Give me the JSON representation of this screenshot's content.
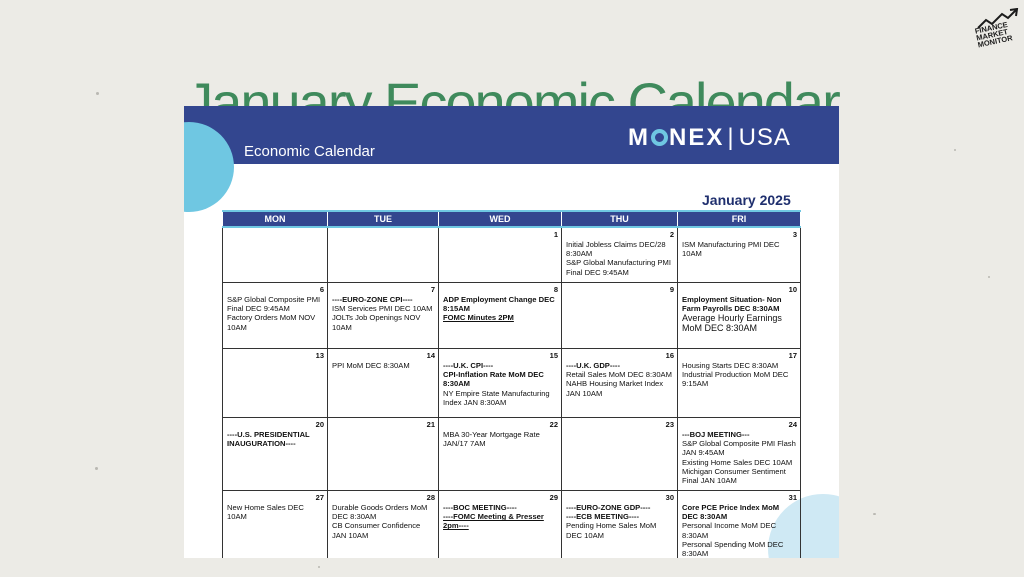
{
  "page": {
    "title": "January Economic Calendar"
  },
  "logo": {
    "line1": "FINANCE",
    "line2": "MARKET",
    "line3": "MONITOR"
  },
  "document": {
    "header_label": "Economic Calendar",
    "brand": {
      "left": "M",
      "mid": "NEX",
      "sep": "|",
      "right": "USA"
    },
    "month": "January 2025",
    "days": [
      "MON",
      "TUE",
      "WED",
      "THU",
      "FRI"
    ],
    "weeks": [
      [
        {
          "day": "",
          "lines": []
        },
        {
          "day": "",
          "lines": []
        },
        {
          "day": "1",
          "lines": []
        },
        {
          "day": "2",
          "lines": [
            {
              "text": "Initial Jobless Claims DEC/28 8:30AM"
            },
            {
              "text": "S&P Global Manufacturing PMI Final DEC 9:45AM"
            }
          ]
        },
        {
          "day": "3",
          "lines": [
            {
              "text": "ISM Manufacturing PMI DEC 10AM"
            }
          ]
        }
      ],
      [
        {
          "day": "6",
          "lines": [
            {
              "text": "S&P Global Composite PMI Final DEC 9:45AM"
            },
            {
              "text": "Factory Orders MoM NOV 10AM"
            }
          ]
        },
        {
          "day": "7",
          "lines": [
            {
              "text": "----EURO-ZONE CPI----",
              "style": "b"
            },
            {
              "text": "ISM Services PMI DEC 10AM"
            },
            {
              "text": "JOLTs Job Openings NOV 10AM"
            }
          ]
        },
        {
          "day": "8",
          "lines": [
            {
              "text": "ADP Employment Change DEC 8:15AM",
              "style": "b"
            },
            {
              "text": "FOMC Minutes 2PM",
              "style": "b u"
            }
          ]
        },
        {
          "day": "9",
          "lines": []
        },
        {
          "day": "10",
          "lines": [
            {
              "text": "Employment Situation- Non Farm Payrolls DEC 8:30AM",
              "style": "b"
            },
            {
              "text": "Average Hourly Earnings MoM DEC 8:30AM",
              "style": "big"
            }
          ]
        }
      ],
      [
        {
          "day": "13",
          "lines": []
        },
        {
          "day": "14",
          "lines": [
            {
              "text": "PPI MoM DEC 8:30AM"
            }
          ]
        },
        {
          "day": "15",
          "lines": [
            {
              "text": "----U.K. CPI----",
              "style": "b"
            },
            {
              "text": "CPI-Inflation Rate MoM DEC 8:30AM",
              "style": "b"
            },
            {
              "text": "NY Empire State Manufacturing Index JAN 8:30AM"
            }
          ]
        },
        {
          "day": "16",
          "lines": [
            {
              "text": "----U.K. GDP----",
              "style": "b"
            },
            {
              "text": "Retail Sales MoM DEC 8:30AM"
            },
            {
              "text": "NAHB Housing Market Index JAN 10AM"
            }
          ]
        },
        {
          "day": "17",
          "lines": [
            {
              "text": "Housing Starts DEC 8:30AM"
            },
            {
              "text": "Industrial Production MoM DEC 9:15AM"
            }
          ]
        }
      ],
      [
        {
          "day": "20",
          "lines": [
            {
              "text": "----U.S. PRESIDENTIAL INAUGURATION----",
              "style": "b"
            }
          ]
        },
        {
          "day": "21",
          "lines": []
        },
        {
          "day": "22",
          "lines": [
            {
              "text": "MBA 30-Year Mortgage Rate JAN/17 7AM"
            }
          ]
        },
        {
          "day": "23",
          "lines": []
        },
        {
          "day": "24",
          "lines": [
            {
              "text": "---BOJ MEETING---",
              "style": "b"
            },
            {
              "text": "S&P Global Composite PMI Flash JAN 9:45AM"
            },
            {
              "text": "Existing Home Sales DEC 10AM"
            },
            {
              "text": "Michigan Consumer Sentiment Final JAN 10AM"
            }
          ]
        }
      ],
      [
        {
          "day": "27",
          "lines": [
            {
              "text": "New Home Sales DEC 10AM"
            }
          ]
        },
        {
          "day": "28",
          "lines": [
            {
              "text": "Durable Goods Orders MoM DEC 8:30AM"
            },
            {
              "text": "CB Consumer Confidence JAN 10AM"
            }
          ]
        },
        {
          "day": "29",
          "lines": [
            {
              "text": "----BOC MEETING----",
              "style": "b"
            },
            {
              "text": "----FOMC Meeting & Presser 2pm----",
              "style": "b u"
            }
          ]
        },
        {
          "day": "30",
          "lines": [
            {
              "text": "----EURO-ZONE GDP----",
              "style": "b"
            },
            {
              "text": "----ECB MEETING----",
              "style": "b"
            },
            {
              "text": "Pending Home Sales MoM DEC 10AM"
            }
          ]
        },
        {
          "day": "31",
          "lines": [
            {
              "text": "Core PCE Price Index MoM DEC 8:30AM",
              "style": "b"
            },
            {
              "text": "Personal Income MoM DEC 8:30AM"
            },
            {
              "text": "Personal Spending MoM DEC 8:30AM"
            }
          ]
        }
      ]
    ]
  }
}
